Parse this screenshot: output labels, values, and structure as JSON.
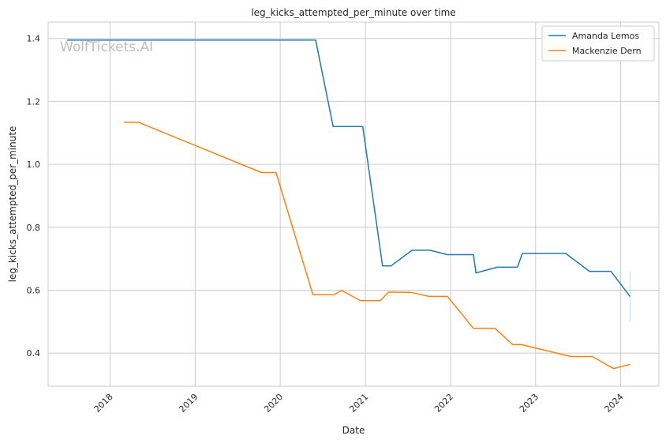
{
  "chart_data": {
    "type": "line",
    "title": "leg_kicks_attempted_per_minute over time",
    "xlabel": "Date",
    "ylabel": "leg_kicks_attempted_per_minute",
    "watermark": "WolfTickets.AI",
    "xlim": [
      "2017-04-10",
      "2024-06-13"
    ],
    "ylim": [
      0.295,
      1.452
    ],
    "x_ticks": [
      "2018",
      "2019",
      "2020",
      "2021",
      "2022",
      "2023",
      "2024"
    ],
    "y_ticks": [
      "0.4",
      "0.6",
      "0.8",
      "1.0",
      "1.2",
      "1.4"
    ],
    "grid": true,
    "legend_position": "top-right",
    "colors": {
      "Amanda Lemos": "#1f77b4",
      "Mackenzie Dern": "#ff7f0e"
    },
    "series": [
      {
        "name": "Amanda Lemos",
        "x": [
          "2017-07-01",
          "2020-06-01",
          "2020-08-15",
          "2020-12-20",
          "2021-03-15",
          "2021-04-20",
          "2021-07-20",
          "2021-10-05",
          "2021-12-18",
          "2022-04-09",
          "2022-04-20",
          "2022-07-20",
          "2022-10-15",
          "2022-11-05",
          "2023-05-10",
          "2023-08-20",
          "2023-11-20",
          "2024-02-10"
        ],
        "values": [
          1.395,
          1.395,
          1.12,
          1.12,
          0.677,
          0.677,
          0.727,
          0.727,
          0.713,
          0.713,
          0.655,
          0.673,
          0.673,
          0.717,
          0.717,
          0.66,
          0.66,
          0.58
        ]
      },
      {
        "name": "Mackenzie Dern",
        "x": [
          "2018-03-01",
          "2018-05-01",
          "2019-10-12",
          "2019-12-14",
          "2020-05-20",
          "2020-08-20",
          "2020-09-20",
          "2020-12-10",
          "2021-03-05",
          "2021-04-10",
          "2021-07-15",
          "2021-10-01",
          "2021-12-18",
          "2022-04-09",
          "2022-07-10",
          "2022-09-25",
          "2022-11-01",
          "2023-06-01",
          "2023-09-01",
          "2023-12-01",
          "2024-02-10"
        ],
        "values": [
          1.134,
          1.134,
          0.974,
          0.974,
          0.586,
          0.586,
          0.599,
          0.567,
          0.567,
          0.594,
          0.593,
          0.58,
          0.58,
          0.479,
          0.479,
          0.427,
          0.427,
          0.389,
          0.389,
          0.351,
          0.364
        ]
      }
    ]
  }
}
